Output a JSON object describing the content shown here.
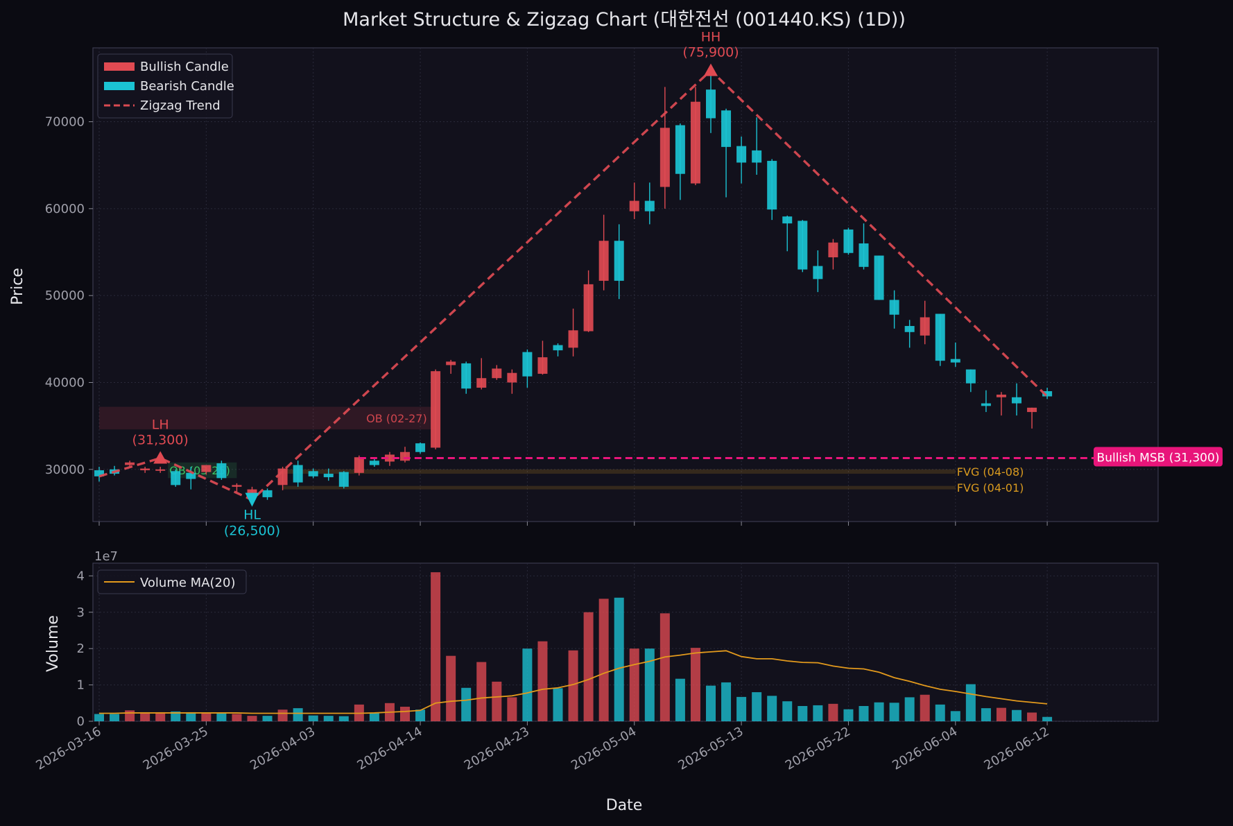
{
  "title": "Market Structure & Zigzag Chart (대한전선 (001440.KS) (1D))",
  "colors": {
    "background": "#0b0b12",
    "panel": "#12111c",
    "bull": "#e04a52",
    "bear": "#1bc3d3",
    "zigzag": "#d94a52",
    "msb": "#e8157a",
    "fvg": "#d99a1f",
    "volume_ma": "#e39a1c",
    "ob_bear": "#e04a52",
    "ob_bull": "#3fd06a",
    "text": "#e6e6ea",
    "tick": "#a0a0aa",
    "grid": "#2a2a3a"
  },
  "chart_data": {
    "type": "candlestick",
    "title": "Market Structure & Zigzag Chart (대한전선 (001440.KS) (1D))",
    "price_panel": {
      "ylabel": "Price",
      "ylim": [
        24000,
        78500
      ],
      "yticks": [
        30000,
        40000,
        50000,
        60000,
        70000
      ]
    },
    "volume_panel": {
      "ylabel": "Volume",
      "scale_label": "1e7",
      "ylim": [
        0,
        4.35
      ],
      "yticks": [
        0,
        1,
        2,
        3,
        4
      ]
    },
    "xlabel": "Date",
    "x_ticks": [
      {
        "i": 0,
        "label": "2026-03-16"
      },
      {
        "i": 7,
        "label": "2026-03-25"
      },
      {
        "i": 14,
        "label": "2026-04-03"
      },
      {
        "i": 21,
        "label": "2026-04-14"
      },
      {
        "i": 28,
        "label": "2026-04-23"
      },
      {
        "i": 35,
        "label": "2026-05-04"
      },
      {
        "i": 42,
        "label": "2026-05-13"
      },
      {
        "i": 49,
        "label": "2026-05-22"
      },
      {
        "i": 56,
        "label": "2026-06-04"
      },
      {
        "i": 62,
        "label": "2026-06-12"
      }
    ],
    "legend_price": [
      {
        "label": "Bullish Candle",
        "type": "bull"
      },
      {
        "label": "Bearish Candle",
        "type": "bear"
      },
      {
        "label": "Zigzag Trend",
        "type": "zigzag"
      }
    ],
    "legend_volume": [
      {
        "label": "Volume MA(20)"
      }
    ],
    "candles": [
      {
        "o": 29900,
        "h": 30300,
        "l": 28600,
        "c": 29200
      },
      {
        "o": 30000,
        "h": 30400,
        "l": 29300,
        "c": 29500
      },
      {
        "o": 30500,
        "h": 31000,
        "l": 30200,
        "c": 30800
      },
      {
        "o": 29900,
        "h": 30300,
        "l": 29600,
        "c": 30100
      },
      {
        "o": 29900,
        "h": 30300,
        "l": 29600,
        "c": 30000
      },
      {
        "o": 29800,
        "h": 30000,
        "l": 28000,
        "c": 28200
      },
      {
        "o": 29600,
        "h": 30300,
        "l": 27700,
        "c": 28900
      },
      {
        "o": 29700,
        "h": 30300,
        "l": 29400,
        "c": 30500
      },
      {
        "o": 30700,
        "h": 31000,
        "l": 28800,
        "c": 29000
      },
      {
        "o": 28000,
        "h": 28400,
        "l": 27400,
        "c": 28200
      },
      {
        "o": 27200,
        "h": 28000,
        "l": 26500,
        "c": 27700
      },
      {
        "o": 27600,
        "h": 27800,
        "l": 26500,
        "c": 26800
      },
      {
        "o": 28200,
        "h": 30300,
        "l": 27600,
        "c": 30100
      },
      {
        "o": 30500,
        "h": 31000,
        "l": 28000,
        "c": 28500
      },
      {
        "o": 29800,
        "h": 30100,
        "l": 29000,
        "c": 29200
      },
      {
        "o": 29500,
        "h": 30100,
        "l": 28700,
        "c": 29100
      },
      {
        "o": 29700,
        "h": 29800,
        "l": 27800,
        "c": 28000
      },
      {
        "o": 29600,
        "h": 31600,
        "l": 29300,
        "c": 31400
      },
      {
        "o": 31000,
        "h": 31200,
        "l": 30300,
        "c": 30500
      },
      {
        "o": 30900,
        "h": 32000,
        "l": 30400,
        "c": 31700
      },
      {
        "o": 31000,
        "h": 32600,
        "l": 30800,
        "c": 32000
      },
      {
        "o": 33000,
        "h": 33100,
        "l": 31800,
        "c": 32000
      },
      {
        "o": 32500,
        "h": 41500,
        "l": 32300,
        "c": 41300
      },
      {
        "o": 42000,
        "h": 42600,
        "l": 41000,
        "c": 42400
      },
      {
        "o": 42200,
        "h": 42400,
        "l": 38700,
        "c": 39300
      },
      {
        "o": 39400,
        "h": 42800,
        "l": 39200,
        "c": 40500
      },
      {
        "o": 40500,
        "h": 42000,
        "l": 40300,
        "c": 41600
      },
      {
        "o": 40000,
        "h": 41500,
        "l": 38700,
        "c": 41100
      },
      {
        "o": 43500,
        "h": 43800,
        "l": 39400,
        "c": 40700
      },
      {
        "o": 41000,
        "h": 44800,
        "l": 40900,
        "c": 42900
      },
      {
        "o": 44300,
        "h": 44500,
        "l": 43000,
        "c": 43700
      },
      {
        "o": 44000,
        "h": 48500,
        "l": 43000,
        "c": 46000
      },
      {
        "o": 45900,
        "h": 52900,
        "l": 45800,
        "c": 51300
      },
      {
        "o": 51700,
        "h": 59300,
        "l": 50600,
        "c": 56300
      },
      {
        "o": 56300,
        "h": 58200,
        "l": 49600,
        "c": 51700
      },
      {
        "o": 59700,
        "h": 63000,
        "l": 58800,
        "c": 60900
      },
      {
        "o": 60900,
        "h": 63000,
        "l": 58200,
        "c": 59700
      },
      {
        "o": 62500,
        "h": 74000,
        "l": 60000,
        "c": 69300
      },
      {
        "o": 69600,
        "h": 69800,
        "l": 61000,
        "c": 64000
      },
      {
        "o": 62900,
        "h": 74000,
        "l": 62700,
        "c": 72300
      },
      {
        "o": 73700,
        "h": 75900,
        "l": 68700,
        "c": 70400
      },
      {
        "o": 71300,
        "h": 71500,
        "l": 61300,
        "c": 67100
      },
      {
        "o": 67200,
        "h": 68300,
        "l": 62900,
        "c": 65300
      },
      {
        "o": 66700,
        "h": 70500,
        "l": 63900,
        "c": 65300
      },
      {
        "o": 65500,
        "h": 65700,
        "l": 58700,
        "c": 59900
      },
      {
        "o": 59100,
        "h": 59200,
        "l": 55100,
        "c": 58300
      },
      {
        "o": 58600,
        "h": 58700,
        "l": 52700,
        "c": 53000
      },
      {
        "o": 53400,
        "h": 55200,
        "l": 50400,
        "c": 51900
      },
      {
        "o": 54400,
        "h": 56500,
        "l": 53000,
        "c": 56100
      },
      {
        "o": 57600,
        "h": 57800,
        "l": 54700,
        "c": 54900
      },
      {
        "o": 56000,
        "h": 58300,
        "l": 53000,
        "c": 53300
      },
      {
        "o": 54600,
        "h": 54600,
        "l": 49500,
        "c": 49500
      },
      {
        "o": 49500,
        "h": 50600,
        "l": 46200,
        "c": 47800
      },
      {
        "o": 46500,
        "h": 47200,
        "l": 44000,
        "c": 45800
      },
      {
        "o": 45400,
        "h": 49400,
        "l": 44400,
        "c": 47500
      },
      {
        "o": 47900,
        "h": 47900,
        "l": 41900,
        "c": 42500
      },
      {
        "o": 42700,
        "h": 44600,
        "l": 41800,
        "c": 42300
      },
      {
        "o": 41500,
        "h": 41500,
        "l": 38900,
        "c": 39900
      },
      {
        "o": 37600,
        "h": 39100,
        "l": 36600,
        "c": 37300
      },
      {
        "o": 38300,
        "h": 38900,
        "l": 36200,
        "c": 38600
      },
      {
        "o": 38300,
        "h": 39900,
        "l": 36200,
        "c": 37600
      },
      {
        "o": 36600,
        "h": 37100,
        "l": 34700,
        "c": 37100
      },
      {
        "o": 39000,
        "h": 39400,
        "l": 38100,
        "c": 38400
      }
    ],
    "volume": [
      0.2,
      0.2,
      0.3,
      0.25,
      0.25,
      0.27,
      0.25,
      0.22,
      0.22,
      0.2,
      0.15,
      0.15,
      0.32,
      0.36,
      0.16,
      0.15,
      0.14,
      0.46,
      0.22,
      0.5,
      0.4,
      0.32,
      4.1,
      1.8,
      0.92,
      1.63,
      1.09,
      0.66,
      2.0,
      2.2,
      0.91,
      1.95,
      3.0,
      3.37,
      3.4,
      2.0,
      2.0,
      2.97,
      1.17,
      2.02,
      0.98,
      1.07,
      0.67,
      0.8,
      0.7,
      0.55,
      0.42,
      0.44,
      0.48,
      0.33,
      0.42,
      0.52,
      0.51,
      0.66,
      0.73,
      0.46,
      0.28,
      1.02,
      0.36,
      0.37,
      0.31,
      0.24,
      0.12
    ],
    "volume_ma": [
      0.22,
      0.22,
      0.23,
      0.23,
      0.23,
      0.23,
      0.23,
      0.23,
      0.23,
      0.23,
      0.22,
      0.22,
      0.22,
      0.22,
      0.22,
      0.22,
      0.22,
      0.22,
      0.23,
      0.25,
      0.27,
      0.3,
      0.5,
      0.55,
      0.58,
      0.64,
      0.67,
      0.7,
      0.78,
      0.88,
      0.92,
      1.01,
      1.15,
      1.32,
      1.46,
      1.56,
      1.65,
      1.77,
      1.82,
      1.88,
      1.91,
      1.94,
      1.78,
      1.72,
      1.72,
      1.66,
      1.62,
      1.61,
      1.52,
      1.46,
      1.44,
      1.35,
      1.2,
      1.1,
      0.98,
      0.88,
      0.82,
      0.75,
      0.68,
      0.62,
      0.56,
      0.52,
      0.48
    ],
    "zigzag": [
      {
        "i": 0,
        "price": 29200
      },
      {
        "i": 4,
        "price": 31300
      },
      {
        "i": 10,
        "price": 26500
      },
      {
        "i": 40,
        "price": 75900
      },
      {
        "i": 62,
        "price": 38400
      }
    ],
    "pivots": [
      {
        "i": 4,
        "price": 31300,
        "label": "LH",
        "value_label": "(31,300)",
        "dir": "up",
        "kind": "bull"
      },
      {
        "i": 10,
        "price": 26500,
        "label": "HL",
        "value_label": "(26,500)",
        "dir": "down",
        "kind": "bear"
      },
      {
        "i": 40,
        "price": 75900,
        "label": "HH",
        "value_label": "(75,900)",
        "dir": "up",
        "kind": "bull"
      }
    ],
    "msb": {
      "price": 31300,
      "from_i": 17,
      "to_i": 66.5,
      "label": "Bullish MSB (31,300)"
    },
    "order_blocks": [
      {
        "from_i": 0,
        "to_i": 22,
        "top": 37200,
        "bottom": 34600,
        "label": "OB (02-27)",
        "kind": "bear"
      },
      {
        "from_i": 4.5,
        "to_i": 9,
        "top": 30800,
        "bottom": 29000,
        "label": "OB (03-25)",
        "kind": "bull"
      }
    ],
    "fvgs": [
      {
        "from_i": 12,
        "to_i": 56,
        "top": 30000,
        "bottom": 29500,
        "label": "FVG (04-08)"
      },
      {
        "from_i": 12,
        "to_i": 56,
        "top": 28100,
        "bottom": 27700,
        "label": "FVG (04-01)"
      }
    ]
  }
}
